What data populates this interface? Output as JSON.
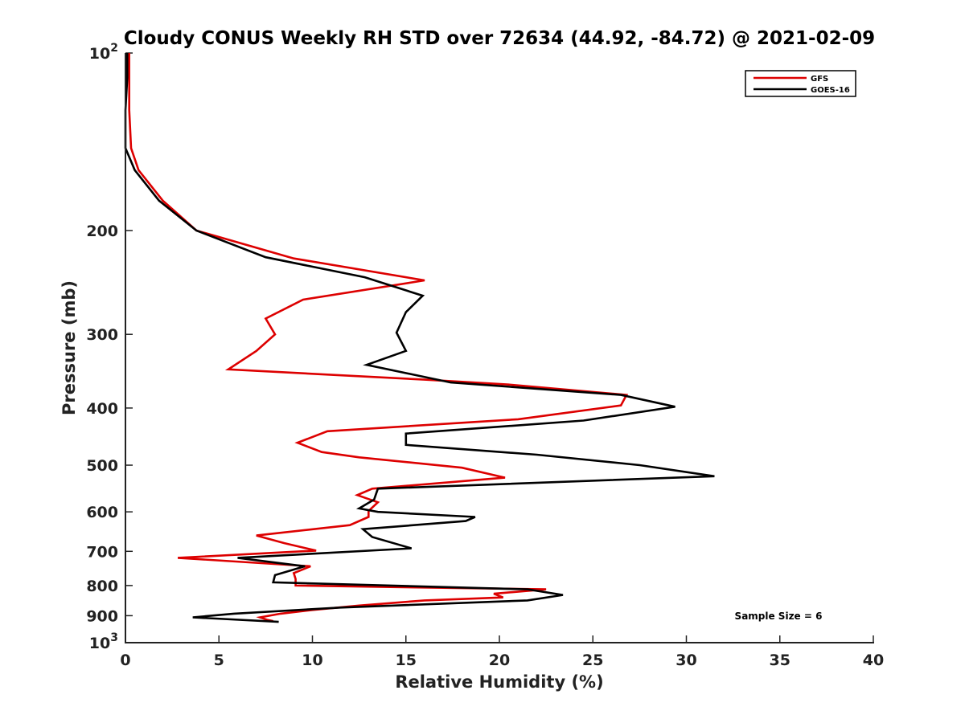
{
  "chart_data": {
    "type": "line",
    "title": "Cloudy CONUS Weekly RH STD over 72634 (44.92, -84.72) @ 2021-02-09",
    "xlabel": "Relative Humidity (%)",
    "ylabel": "Pressure (mb)",
    "xlim": [
      0,
      40
    ],
    "ylim": [
      100,
      1000
    ],
    "yscale": "log",
    "y_reversed": true,
    "grid": false,
    "legend_position": "top-right",
    "x_ticks": [
      "0",
      "5",
      "10",
      "15",
      "20",
      "25",
      "30",
      "35",
      "40"
    ],
    "x_tick_values": [
      0,
      5,
      10,
      15,
      20,
      25,
      30,
      35,
      40
    ],
    "y_ticks": [
      {
        "value": 100,
        "base": "10",
        "exp": "2"
      },
      {
        "value": 200,
        "label": "200"
      },
      {
        "value": 300,
        "label": "300"
      },
      {
        "value": 400,
        "label": "400"
      },
      {
        "value": 500,
        "label": "500"
      },
      {
        "value": 600,
        "label": "600"
      },
      {
        "value": 700,
        "label": "700"
      },
      {
        "value": 800,
        "label": "800"
      },
      {
        "value": 900,
        "label": "900"
      },
      {
        "value": 1000,
        "base": "10",
        "exp": "3"
      }
    ],
    "annotation": "Sample Size = 6",
    "colors": {
      "GFS": "#dd0000",
      "GOES-16": "#000000"
    },
    "series": [
      {
        "name": "GFS",
        "color": "#dd0000",
        "points": [
          [
            0.2,
            100
          ],
          [
            0.2,
            110
          ],
          [
            0.2,
            125
          ],
          [
            0.3,
            145
          ],
          [
            0.7,
            158
          ],
          [
            2.0,
            178
          ],
          [
            3.8,
            200
          ],
          [
            9.0,
            223
          ],
          [
            16.0,
            243
          ],
          [
            9.5,
            262
          ],
          [
            7.5,
            282
          ],
          [
            8.0,
            300
          ],
          [
            7.0,
            320
          ],
          [
            5.5,
            344
          ],
          [
            16.0,
            358
          ],
          [
            20.5,
            365
          ],
          [
            26.8,
            380
          ],
          [
            26.5,
            396
          ],
          [
            21.0,
            418
          ],
          [
            10.8,
            438
          ],
          [
            9.2,
            458
          ],
          [
            10.5,
            475
          ],
          [
            12.5,
            485
          ],
          [
            18.0,
            505
          ],
          [
            20.3,
            525
          ],
          [
            13.2,
            548
          ],
          [
            12.4,
            562
          ],
          [
            13.5,
            578
          ],
          [
            13.0,
            598
          ],
          [
            13.0,
            612
          ],
          [
            12.0,
            632
          ],
          [
            7.0,
            658
          ],
          [
            8.5,
            678
          ],
          [
            10.2,
            698
          ],
          [
            2.8,
            718
          ],
          [
            9.9,
            742
          ],
          [
            9.0,
            762
          ],
          [
            9.1,
            780
          ],
          [
            9.1,
            800
          ],
          [
            22.5,
            812
          ],
          [
            19.7,
            826
          ],
          [
            20.2,
            838
          ],
          [
            16.0,
            848
          ],
          [
            12.5,
            865
          ],
          [
            10.0,
            880
          ],
          [
            8.3,
            893
          ],
          [
            7.2,
            906
          ],
          [
            7.6,
            915
          ],
          [
            7.9,
            919
          ]
        ]
      },
      {
        "name": "GOES-16",
        "color": "#000000",
        "points": [
          [
            0.1,
            100
          ],
          [
            0.1,
            110
          ],
          [
            0.0,
            125
          ],
          [
            0.0,
            145
          ],
          [
            0.5,
            158
          ],
          [
            1.8,
            178
          ],
          [
            3.8,
            200
          ],
          [
            7.5,
            222
          ],
          [
            12.8,
            240
          ],
          [
            15.9,
            258
          ],
          [
            15.0,
            275
          ],
          [
            14.5,
            298
          ],
          [
            15.0,
            320
          ],
          [
            12.9,
            338
          ],
          [
            17.4,
            362
          ],
          [
            26.5,
            380
          ],
          [
            29.4,
            398
          ],
          [
            24.5,
            420
          ],
          [
            15.0,
            442
          ],
          [
            15.0,
            462
          ],
          [
            22.0,
            480
          ],
          [
            27.5,
            500
          ],
          [
            31.5,
            522
          ],
          [
            13.5,
            548
          ],
          [
            13.3,
            572
          ],
          [
            12.5,
            592
          ],
          [
            13.5,
            600
          ],
          [
            18.7,
            612
          ],
          [
            18.2,
            622
          ],
          [
            12.7,
            642
          ],
          [
            13.2,
            662
          ],
          [
            15.3,
            692
          ],
          [
            6.0,
            718
          ],
          [
            9.6,
            742
          ],
          [
            8.0,
            768
          ],
          [
            7.9,
            790
          ],
          [
            21.5,
            812
          ],
          [
            23.4,
            830
          ],
          [
            21.5,
            848
          ],
          [
            11.5,
            872
          ],
          [
            5.8,
            893
          ],
          [
            3.6,
            906
          ],
          [
            8.2,
            922
          ]
        ]
      }
    ]
  }
}
